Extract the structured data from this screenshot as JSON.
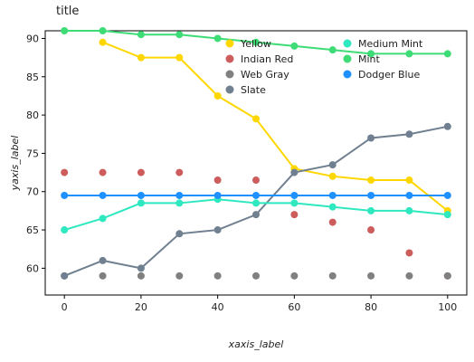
{
  "chart_data": {
    "type": "scatter",
    "title": "title",
    "xlabel": "xaxis_label",
    "ylabel": "yaxis_label",
    "xlim": [
      -5,
      105
    ],
    "ylim": [
      56.5,
      91
    ],
    "xticks": [
      0,
      20,
      40,
      60,
      80,
      100
    ],
    "yticks": [
      60,
      65,
      70,
      75,
      80,
      85,
      90
    ],
    "grid": false,
    "legend_placement": "top-center",
    "x": [
      0,
      10,
      20,
      30,
      40,
      50,
      60,
      70,
      80,
      90,
      100
    ],
    "series": [
      {
        "name": "Yellow",
        "color": "#FFD700",
        "values": [
          null,
          89.5,
          87.5,
          87.5,
          82.5,
          79.5,
          73,
          72,
          71.5,
          71.5,
          67.5
        ],
        "connected": true
      },
      {
        "name": "Indian Red",
        "color": "#CD5C5C",
        "values": [
          72.5,
          72.5,
          72.5,
          72.5,
          71.5,
          71.5,
          67,
          66,
          65,
          62,
          59
        ],
        "connected": false
      },
      {
        "name": "Web Gray",
        "color": "#808080",
        "values": [
          59,
          59,
          59,
          59,
          59,
          59,
          59,
          59,
          59,
          59,
          59
        ],
        "connected": false
      },
      {
        "name": "Slate",
        "color": "#708090",
        "values": [
          59,
          61,
          60,
          64.5,
          65,
          67,
          72.5,
          73.5,
          77,
          77.5,
          78.5
        ],
        "connected": true
      },
      {
        "name": "Medium Mint",
        "color": "#2EE8C0",
        "values": [
          65,
          66.5,
          68.5,
          68.5,
          69,
          68.5,
          68.5,
          68,
          67.5,
          67.5,
          67
        ],
        "connected": true
      },
      {
        "name": "Mint",
        "color": "#3EDC76",
        "values": [
          91,
          91,
          90.5,
          90.5,
          90,
          89.5,
          89,
          88.5,
          88,
          88,
          88
        ],
        "connected": true
      },
      {
        "name": "Dodger Blue",
        "color": "#1E90FF",
        "values": [
          69.5,
          69.5,
          69.5,
          69.5,
          69.5,
          69.5,
          69.5,
          69.5,
          69.5,
          69.5,
          69.5
        ],
        "connected": true
      }
    ]
  }
}
